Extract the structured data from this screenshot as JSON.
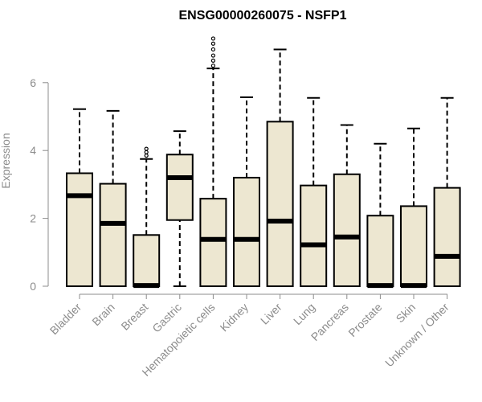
{
  "chart_data": {
    "type": "box",
    "title": "ENSG00000260075 - NSFP1",
    "xlabel": "",
    "ylabel": "Expression",
    "ylim": [
      0,
      7.4
    ],
    "yticks": [
      0,
      2,
      4,
      6
    ],
    "grid": false,
    "box_fill": "#ede7d1",
    "box_stroke": "#000000",
    "categories": [
      "Bladder",
      "Brain",
      "Breast",
      "Gastric",
      "Hematopoietic cells",
      "Kidney",
      "Liver",
      "Lung",
      "Pancreas",
      "Prostate",
      "Skin",
      "Unknown / Other"
    ],
    "boxes": [
      {
        "category": "Bladder",
        "min": 0,
        "q1": 0,
        "median": 2.67,
        "q3": 3.33,
        "max": 5.22,
        "outliers": []
      },
      {
        "category": "Brain",
        "min": 0,
        "q1": 0,
        "median": 1.85,
        "q3": 3.02,
        "max": 5.17,
        "outliers": []
      },
      {
        "category": "Breast",
        "min": 0,
        "q1": 0,
        "median": 0.02,
        "q3": 1.51,
        "max": 3.75,
        "outliers": [
          3.85,
          3.95,
          4.05
        ]
      },
      {
        "category": "Gastric",
        "min": 0,
        "q1": 1.95,
        "median": 3.2,
        "q3": 3.88,
        "max": 4.57,
        "outliers": []
      },
      {
        "category": "Hematopoietic cells",
        "min": 0,
        "q1": 0,
        "median": 1.38,
        "q3": 2.58,
        "max": 6.42,
        "outliers": [
          6.5,
          6.65,
          6.8,
          6.98,
          7.15,
          7.3
        ]
      },
      {
        "category": "Kidney",
        "min": 0,
        "q1": 0,
        "median": 1.38,
        "q3": 3.2,
        "max": 5.57,
        "outliers": []
      },
      {
        "category": "Liver",
        "min": 0,
        "q1": 0,
        "median": 1.92,
        "q3": 4.85,
        "max": 6.98,
        "outliers": []
      },
      {
        "category": "Lung",
        "min": 0,
        "q1": 0,
        "median": 1.22,
        "q3": 2.97,
        "max": 5.55,
        "outliers": []
      },
      {
        "category": "Pancreas",
        "min": 0,
        "q1": 0,
        "median": 1.45,
        "q3": 3.3,
        "max": 4.75,
        "outliers": []
      },
      {
        "category": "Prostate",
        "min": 0,
        "q1": 0,
        "median": 0.02,
        "q3": 2.08,
        "max": 4.2,
        "outliers": []
      },
      {
        "category": "Skin",
        "min": 0,
        "q1": 0,
        "median": 0.02,
        "q3": 2.36,
        "max": 4.65,
        "outliers": []
      },
      {
        "category": "Unknown / Other",
        "min": 0,
        "q1": 0,
        "median": 0.88,
        "q3": 2.9,
        "max": 5.55,
        "outliers": []
      }
    ]
  }
}
